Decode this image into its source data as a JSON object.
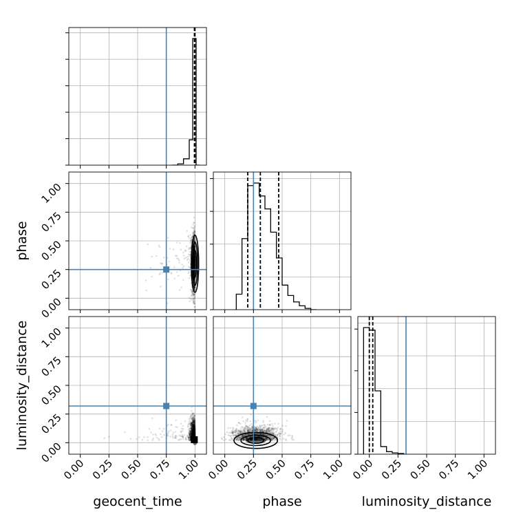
{
  "chart_data": {
    "type": "corner",
    "parameters": [
      "geocent_time",
      "phase",
      "luminosity_distance"
    ],
    "axis_range": [
      -0.1,
      1.1
    ],
    "ticks": [
      "0.00",
      "0.25",
      "0.50",
      "0.75",
      "1.00"
    ],
    "truths": {
      "geocent_time": 0.75,
      "phase": 0.25,
      "luminosity_distance": 0.32
    },
    "truth_color": "#4682b4",
    "grid": true,
    "histograms": {
      "geocent_time": {
        "bins": [
          0.8,
          0.85,
          0.9,
          0.95,
          0.98,
          1.01,
          1.04
        ],
        "values": [
          0.0,
          0.01,
          0.05,
          0.2,
          1.0,
          0.0
        ],
        "quantiles": [
          0.995,
          1.0
        ]
      },
      "phase": {
        "bins": [
          0.1,
          0.15,
          0.2,
          0.25,
          0.3,
          0.35,
          0.4,
          0.45,
          0.5,
          0.55,
          0.6,
          0.65,
          0.7,
          0.75,
          0.8
        ],
        "values": [
          0.12,
          0.55,
          0.96,
          0.98,
          0.88,
          0.78,
          0.6,
          0.4,
          0.19,
          0.11,
          0.06,
          0.03,
          0.01,
          0.0
        ],
        "quantiles": [
          0.2,
          0.31,
          0.47
        ]
      },
      "luminosity_distance": {
        "bins": [
          -0.05,
          0.0,
          0.05,
          0.1,
          0.15,
          0.2,
          0.25,
          0.3
        ],
        "values": [
          1.0,
          0.98,
          0.5,
          0.06,
          0.02,
          0.01,
          0.005
        ],
        "quantiles": [
          0.0,
          0.03
        ]
      }
    },
    "joint_2d": [
      {
        "x": "geocent_time",
        "y": "phase",
        "center": [
          1.0,
          0.3
        ],
        "spread": [
          0.015,
          0.13
        ],
        "contour_levels": [
          [
            0.012,
            0.12
          ],
          [
            0.022,
            0.19
          ],
          [
            0.032,
            0.25
          ]
        ]
      },
      {
        "x": "geocent_time",
        "y": "luminosity_distance",
        "center": [
          1.0,
          0.02
        ],
        "spread": [
          0.02,
          0.08
        ],
        "contour_levels": []
      },
      {
        "x": "phase",
        "y": "luminosity_distance",
        "center": [
          0.27,
          0.02
        ],
        "spread": [
          0.1,
          0.06
        ],
        "contour_levels": [
          [
            0.07,
            0.025
          ],
          [
            0.13,
            0.045
          ],
          [
            0.19,
            0.07
          ]
        ]
      }
    ]
  }
}
